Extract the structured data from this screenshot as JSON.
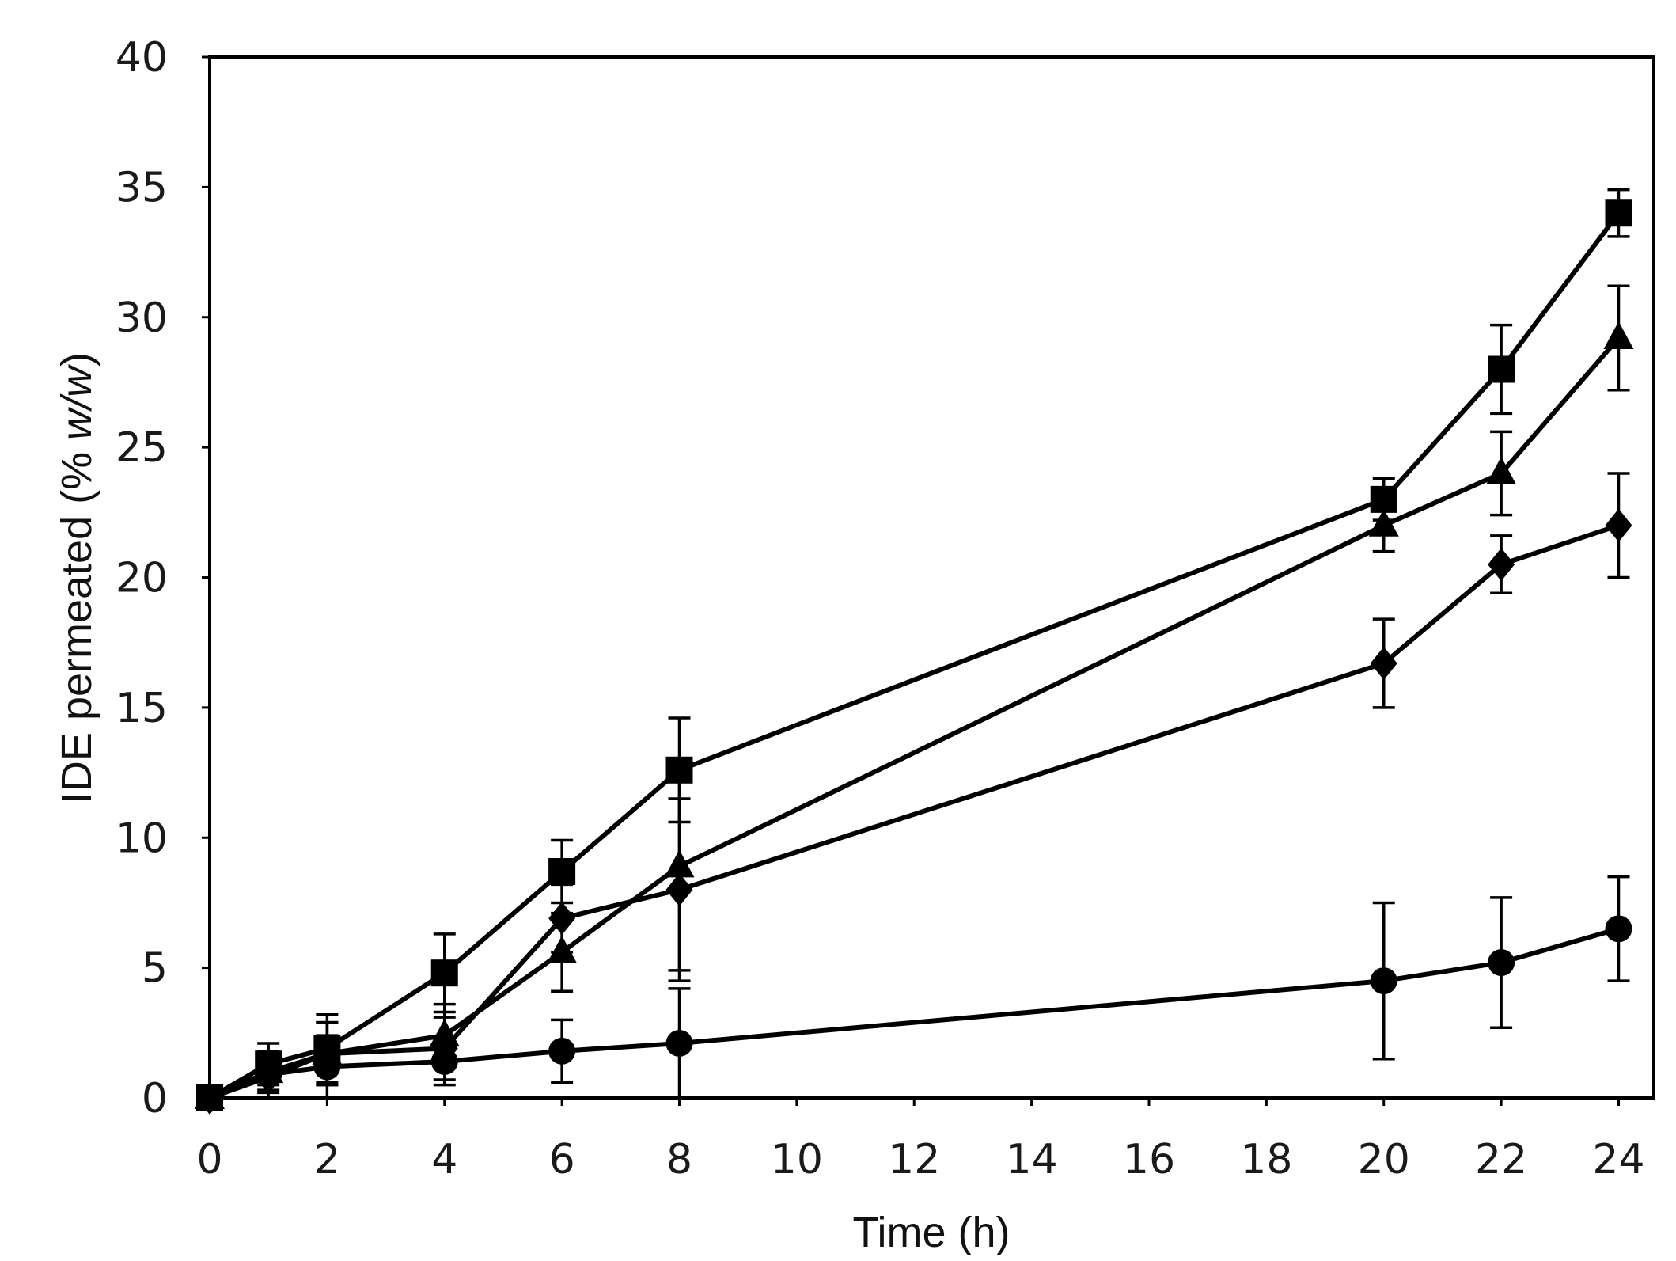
{
  "chart_data": {
    "type": "line",
    "xlabel": "Time (h)",
    "ylabel_main": "IDE permeated (% ",
    "ylabel_italic": "w/w",
    "ylabel_end": ")",
    "xlim": [
      0,
      24.6
    ],
    "ylim": [
      0,
      40
    ],
    "xticks": [
      0,
      2,
      4,
      6,
      8,
      10,
      12,
      14,
      16,
      18,
      20,
      22,
      24
    ],
    "yticks": [
      0,
      5,
      10,
      15,
      20,
      25,
      30,
      35,
      40
    ],
    "grid": false,
    "legend": "none",
    "series": [
      {
        "marker": "square",
        "x": [
          0,
          1,
          2,
          4,
          6,
          8,
          20,
          22,
          24
        ],
        "y": [
          0,
          1.3,
          1.9,
          4.8,
          8.7,
          12.6,
          23.0,
          28.0,
          34.0
        ],
        "err": [
          0.3,
          0.8,
          1.3,
          1.5,
          1.2,
          2.0,
          0.8,
          1.7,
          0.9
        ]
      },
      {
        "marker": "triangle",
        "x": [
          0,
          1,
          2,
          4,
          6,
          8,
          20,
          22,
          24
        ],
        "y": [
          0,
          1.0,
          1.7,
          2.4,
          5.6,
          8.9,
          22.0,
          24.0,
          29.2
        ],
        "err": [
          0.3,
          0.8,
          1.2,
          1.2,
          1.5,
          4.0,
          1.0,
          1.6,
          2.0
        ]
      },
      {
        "marker": "diamond",
        "x": [
          0,
          1,
          2,
          4,
          6,
          8,
          20,
          22,
          24
        ],
        "y": [
          0,
          0.8,
          1.7,
          1.9,
          6.9,
          8.0,
          16.7,
          20.5,
          22.0
        ],
        "err": [
          0.3,
          0.8,
          1.2,
          1.2,
          1.3,
          3.5,
          1.7,
          1.1,
          2.0
        ]
      },
      {
        "marker": "circle",
        "x": [
          0,
          1,
          2,
          4,
          6,
          8,
          20,
          22,
          24
        ],
        "y": [
          0,
          0.9,
          1.2,
          1.4,
          1.8,
          2.1,
          4.5,
          5.2,
          6.5
        ],
        "err": [
          0.2,
          0.6,
          1.2,
          0.9,
          1.2,
          2.1,
          3.0,
          2.5,
          2.0
        ]
      }
    ]
  }
}
